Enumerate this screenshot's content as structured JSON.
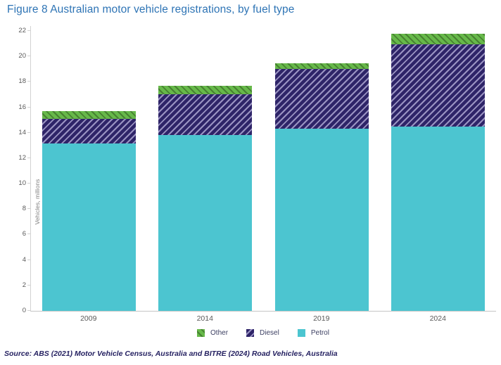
{
  "title": "Figure 8 Australian motor vehicle registrations, by fuel type",
  "source": "Source: ABS (2021) Motor Vehicle Census, Australia and BITRE (2024) Road Vehicles, Australia",
  "colors": {
    "title": "#2e74b5",
    "axis_text": "#595959",
    "axis_line": "#d2d2d2",
    "legend_text": "#3d4063",
    "source_text": "#252161",
    "ylabel_text": "#808080",
    "petrol": "#4cc5d0",
    "diesel": "#2e2468",
    "diesel_hatch": "#9a93c2",
    "other": "#67b94a",
    "other_hatch": "#478231"
  },
  "chart_data": {
    "type": "bar",
    "stacked": true,
    "title": "Figure 8 Australian motor vehicle registrations, by fuel type",
    "xlabel": "",
    "ylabel": "Vehicles, millions",
    "ylim": [
      0,
      22
    ],
    "ytick_step": 2,
    "grid": false,
    "legend_position": "bottom",
    "legend_order": [
      "Other",
      "Diesel",
      "Petrol"
    ],
    "categories": [
      "2009",
      "2014",
      "2019",
      "2024"
    ],
    "series": [
      {
        "name": "Petrol",
        "values": [
          13.15,
          13.8,
          14.3,
          14.5
        ],
        "color": "#4cc5d0",
        "pattern": "solid"
      },
      {
        "name": "Diesel",
        "values": [
          1.95,
          3.25,
          4.7,
          6.45
        ],
        "color": "#2e2468",
        "pattern": "diagonal-up",
        "pattern_color": "#9a93c2"
      },
      {
        "name": "Other",
        "values": [
          0.6,
          0.65,
          0.45,
          0.85
        ],
        "color": "#67b94a",
        "pattern": "diagonal-down",
        "pattern_color": "#478231"
      }
    ],
    "totals": [
      15.7,
      17.7,
      19.45,
      21.8
    ]
  }
}
